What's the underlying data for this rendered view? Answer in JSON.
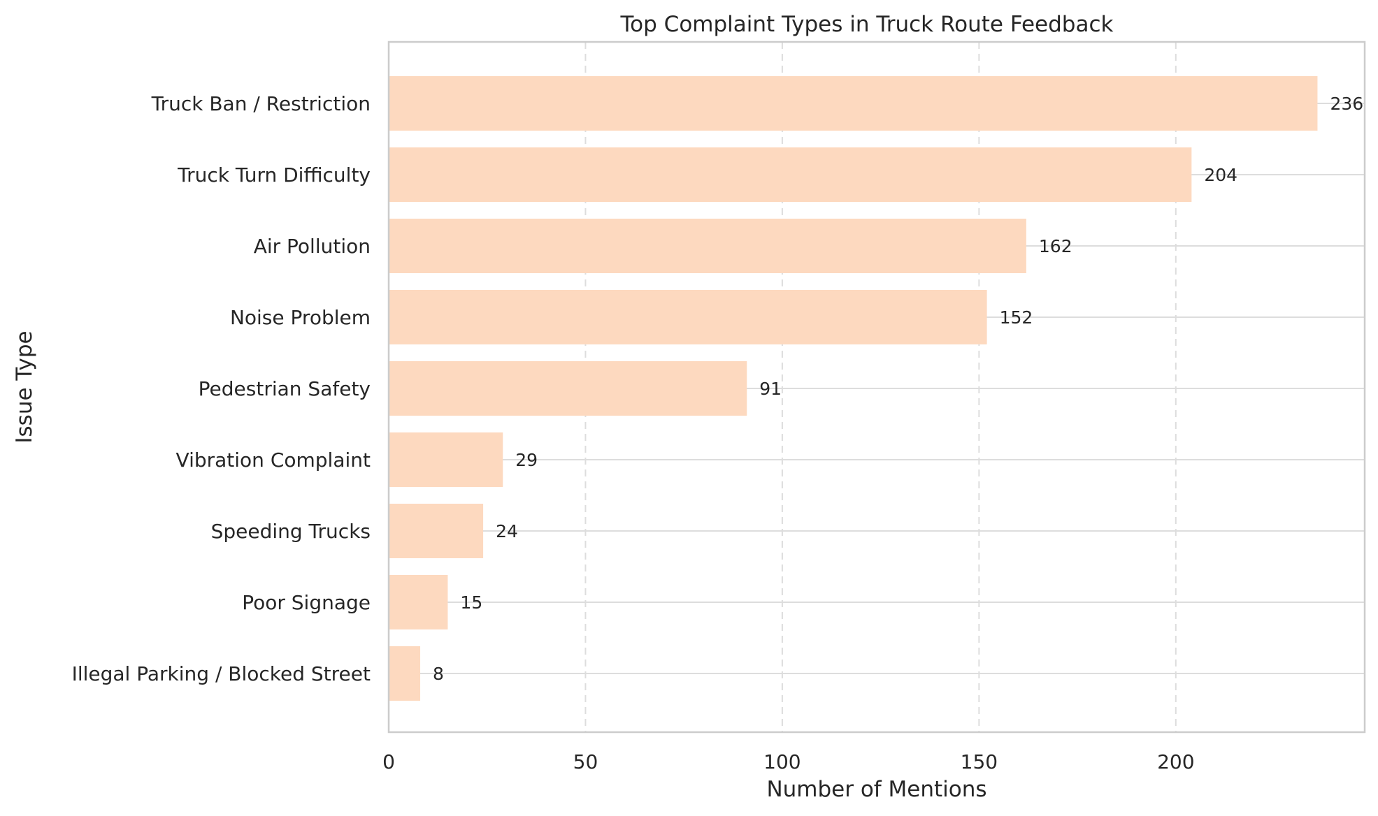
{
  "chart_data": {
    "type": "bar",
    "orientation": "horizontal",
    "title": "Top Complaint Types in Truck Route Feedback",
    "xlabel": "Number of Mentions",
    "ylabel": "Issue Type",
    "categories": [
      "Truck Ban / Restriction",
      "Truck Turn Difficulty",
      "Air Pollution",
      "Noise Problem",
      "Pedestrian Safety",
      "Vibration Complaint",
      "Speeding Trucks",
      "Poor Signage",
      "Illegal Parking / Blocked Street"
    ],
    "values": [
      236,
      204,
      162,
      152,
      91,
      29,
      24,
      15,
      8
    ],
    "data_labels": [
      "236",
      "204",
      "162",
      "152",
      "91",
      "29",
      "24",
      "15",
      "8"
    ],
    "xlim": [
      0,
      248
    ],
    "xticks": [
      0,
      50,
      100,
      150,
      200
    ],
    "xtick_labels": [
      "0",
      "50",
      "100",
      "150",
      "200"
    ],
    "grid": true,
    "colors": {
      "bar": "#fdd9bf",
      "grid": "#dddddd",
      "axes": "#cccccc",
      "text": "#262626"
    }
  }
}
